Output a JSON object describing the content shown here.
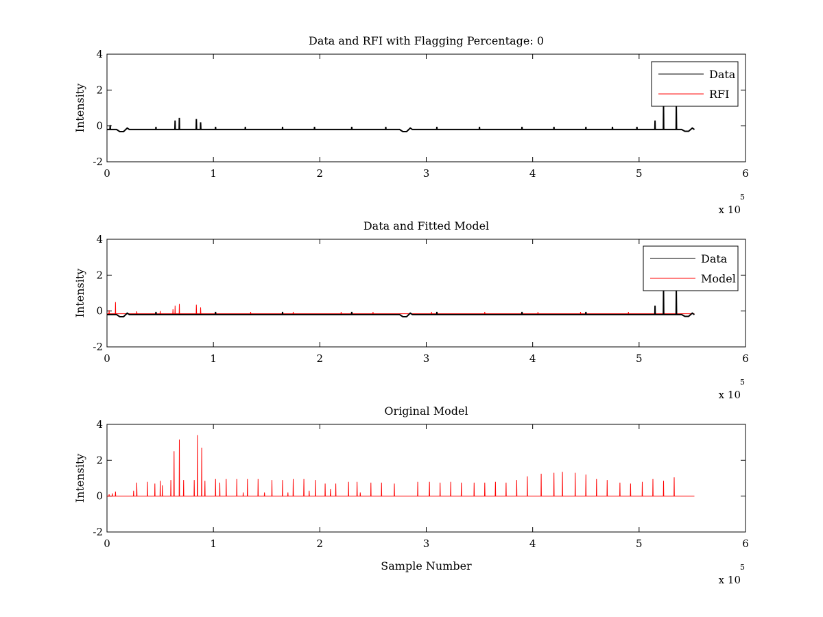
{
  "chart_data": [
    {
      "type": "line",
      "title": "Data and RFI with Flagging Percentage: 0",
      "xlabel": "",
      "ylabel": "Intensity",
      "xlim": [
        0,
        6
      ],
      "ylim": [
        -2,
        4
      ],
      "xticks": [
        "0",
        "1",
        "2",
        "3",
        "4",
        "5",
        "6"
      ],
      "yticks": [
        "-2",
        "0",
        "2",
        "4"
      ],
      "x_multiplier": "x 10",
      "x_multiplier_exp": "5",
      "grid": false,
      "legend_position": "top-right",
      "series": [
        {
          "name": "Data",
          "color": "#000000",
          "baseline": -0.2,
          "x_end": 5.52,
          "dips": [
            [
              0.14,
              -0.32
            ],
            [
              2.8,
              -0.32
            ],
            [
              5.45,
              -0.3
            ]
          ],
          "spikes": [
            [
              0.03,
              0.05
            ],
            [
              0.46,
              -0.05
            ],
            [
              0.64,
              0.3
            ],
            [
              0.68,
              0.45
            ],
            [
              0.84,
              0.38
            ],
            [
              0.88,
              0.2
            ],
            [
              1.02,
              -0.05
            ],
            [
              1.3,
              -0.05
            ],
            [
              1.65,
              -0.05
            ],
            [
              1.95,
              -0.05
            ],
            [
              2.3,
              -0.05
            ],
            [
              2.62,
              -0.05
            ],
            [
              3.1,
              -0.05
            ],
            [
              3.5,
              -0.05
            ],
            [
              3.9,
              -0.05
            ],
            [
              4.2,
              -0.05
            ],
            [
              4.5,
              -0.05
            ],
            [
              4.75,
              -0.05
            ],
            [
              4.98,
              -0.05
            ],
            [
              5.15,
              0.3
            ],
            [
              5.23,
              1.2
            ],
            [
              5.35,
              1.15
            ]
          ]
        },
        {
          "name": "RFI",
          "color": "#ff0000",
          "values": []
        }
      ]
    },
    {
      "type": "line",
      "title": "Data and Fitted Model",
      "xlabel": "",
      "ylabel": "Intensity",
      "xlim": [
        0,
        6
      ],
      "ylim": [
        -2,
        4
      ],
      "xticks": [
        "0",
        "1",
        "2",
        "3",
        "4",
        "5",
        "6"
      ],
      "yticks": [
        "-2",
        "0",
        "2",
        "4"
      ],
      "x_multiplier": "x 10",
      "x_multiplier_exp": "5",
      "grid": false,
      "legend_position": "top-right",
      "series": [
        {
          "name": "Data",
          "color": "#000000",
          "baseline": -0.2,
          "x_end": 5.52,
          "dips": [
            [
              0.14,
              -0.32
            ],
            [
              2.8,
              -0.32
            ],
            [
              5.45,
              -0.3
            ]
          ],
          "spikes": [
            [
              0.46,
              -0.05
            ],
            [
              1.02,
              -0.05
            ],
            [
              1.65,
              -0.05
            ],
            [
              2.3,
              -0.05
            ],
            [
              3.1,
              -0.05
            ],
            [
              3.9,
              -0.05
            ],
            [
              4.5,
              -0.05
            ],
            [
              5.15,
              0.3
            ],
            [
              5.23,
              1.2
            ],
            [
              5.35,
              1.15
            ]
          ]
        },
        {
          "name": "Model",
          "color": "#ff0000",
          "baseline": -0.15,
          "x_end": 5.52,
          "spikes": [
            [
              0.02,
              0.05
            ],
            [
              0.08,
              0.5
            ],
            [
              0.28,
              -0.02
            ],
            [
              0.5,
              0.0
            ],
            [
              0.62,
              0.1
            ],
            [
              0.64,
              0.3
            ],
            [
              0.68,
              0.4
            ],
            [
              0.84,
              0.35
            ],
            [
              0.88,
              0.2
            ],
            [
              1.02,
              -0.05
            ],
            [
              1.35,
              -0.05
            ],
            [
              1.75,
              -0.05
            ],
            [
              2.2,
              -0.05
            ],
            [
              2.5,
              -0.05
            ],
            [
              3.05,
              -0.05
            ],
            [
              3.55,
              -0.05
            ],
            [
              4.05,
              -0.05
            ],
            [
              4.45,
              -0.05
            ],
            [
              4.9,
              -0.05
            ]
          ]
        }
      ]
    },
    {
      "type": "line",
      "title": "Original Model",
      "xlabel": "Sample Number",
      "ylabel": "Intensity",
      "xlim": [
        0,
        6
      ],
      "ylim": [
        -2,
        4
      ],
      "xticks": [
        "0",
        "1",
        "2",
        "3",
        "4",
        "5",
        "6"
      ],
      "yticks": [
        "-2",
        "0",
        "2",
        "4"
      ],
      "x_multiplier": "x 10",
      "x_multiplier_exp": "5",
      "grid": false,
      "series": [
        {
          "name": "",
          "color": "#ff0000",
          "baseline": 0.0,
          "x_end": 5.52,
          "spikes": [
            [
              0.02,
              0.1
            ],
            [
              0.05,
              0.15
            ],
            [
              0.08,
              0.25
            ],
            [
              0.25,
              0.3
            ],
            [
              0.28,
              0.75
            ],
            [
              0.38,
              0.8
            ],
            [
              0.45,
              0.7
            ],
            [
              0.5,
              0.85
            ],
            [
              0.52,
              0.6
            ],
            [
              0.6,
              0.9
            ],
            [
              0.63,
              2.5
            ],
            [
              0.68,
              3.15
            ],
            [
              0.72,
              0.9
            ],
            [
              0.82,
              0.9
            ],
            [
              0.85,
              3.4
            ],
            [
              0.89,
              2.7
            ],
            [
              0.92,
              0.85
            ],
            [
              1.02,
              0.95
            ],
            [
              1.06,
              0.75
            ],
            [
              1.12,
              0.95
            ],
            [
              1.22,
              0.95
            ],
            [
              1.28,
              0.2
            ],
            [
              1.32,
              0.95
            ],
            [
              1.42,
              0.95
            ],
            [
              1.48,
              0.2
            ],
            [
              1.55,
              0.9
            ],
            [
              1.65,
              0.9
            ],
            [
              1.7,
              0.2
            ],
            [
              1.75,
              0.95
            ],
            [
              1.85,
              0.95
            ],
            [
              1.9,
              0.3
            ],
            [
              1.96,
              0.9
            ],
            [
              2.05,
              0.7
            ],
            [
              2.1,
              0.4
            ],
            [
              2.15,
              0.7
            ],
            [
              2.27,
              0.8
            ],
            [
              2.35,
              0.8
            ],
            [
              2.38,
              0.2
            ],
            [
              2.48,
              0.75
            ],
            [
              2.58,
              0.75
            ],
            [
              2.7,
              0.7
            ],
            [
              2.92,
              0.8
            ],
            [
              3.03,
              0.8
            ],
            [
              3.13,
              0.75
            ],
            [
              3.23,
              0.8
            ],
            [
              3.33,
              0.75
            ],
            [
              3.45,
              0.75
            ],
            [
              3.55,
              0.75
            ],
            [
              3.65,
              0.8
            ],
            [
              3.75,
              0.75
            ],
            [
              3.85,
              0.9
            ],
            [
              3.95,
              1.1
            ],
            [
              4.08,
              1.25
            ],
            [
              4.2,
              1.3
            ],
            [
              4.28,
              1.35
            ],
            [
              4.4,
              1.3
            ],
            [
              4.5,
              1.2
            ],
            [
              4.6,
              0.95
            ],
            [
              4.7,
              0.9
            ],
            [
              4.82,
              0.75
            ],
            [
              4.92,
              0.7
            ],
            [
              5.03,
              0.8
            ],
            [
              5.13,
              0.95
            ],
            [
              5.23,
              0.85
            ],
            [
              5.33,
              1.05
            ]
          ]
        }
      ]
    }
  ]
}
